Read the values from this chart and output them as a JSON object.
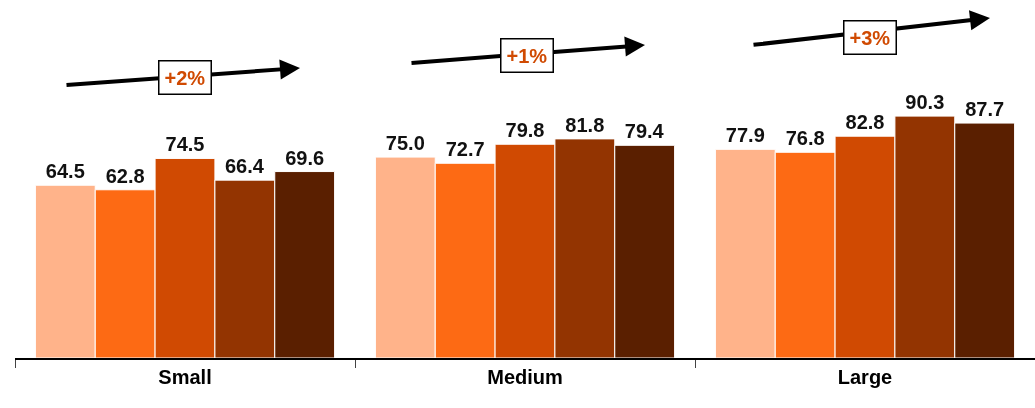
{
  "chart_data": {
    "type": "bar",
    "categories": [
      "Small",
      "Medium",
      "Large"
    ],
    "series": [
      {
        "color": "#ffb38a",
        "values": [
          64.5,
          75.0,
          77.9
        ],
        "value_labels": [
          "64.5",
          "75.0",
          "77.9"
        ]
      },
      {
        "color": "#fd6a14",
        "values": [
          62.8,
          72.7,
          76.8
        ]
      },
      {
        "color": "#d04a02",
        "values": [
          74.5,
          79.8,
          82.8
        ]
      },
      {
        "color": "#933401",
        "values": [
          66.4,
          81.8,
          90.3
        ]
      },
      {
        "color": "#5a1f00",
        "values": [
          69.6,
          79.4,
          87.7
        ]
      }
    ],
    "data_labels": true,
    "annotations": [
      "+2%",
      "+1%",
      "+3%"
    ]
  }
}
